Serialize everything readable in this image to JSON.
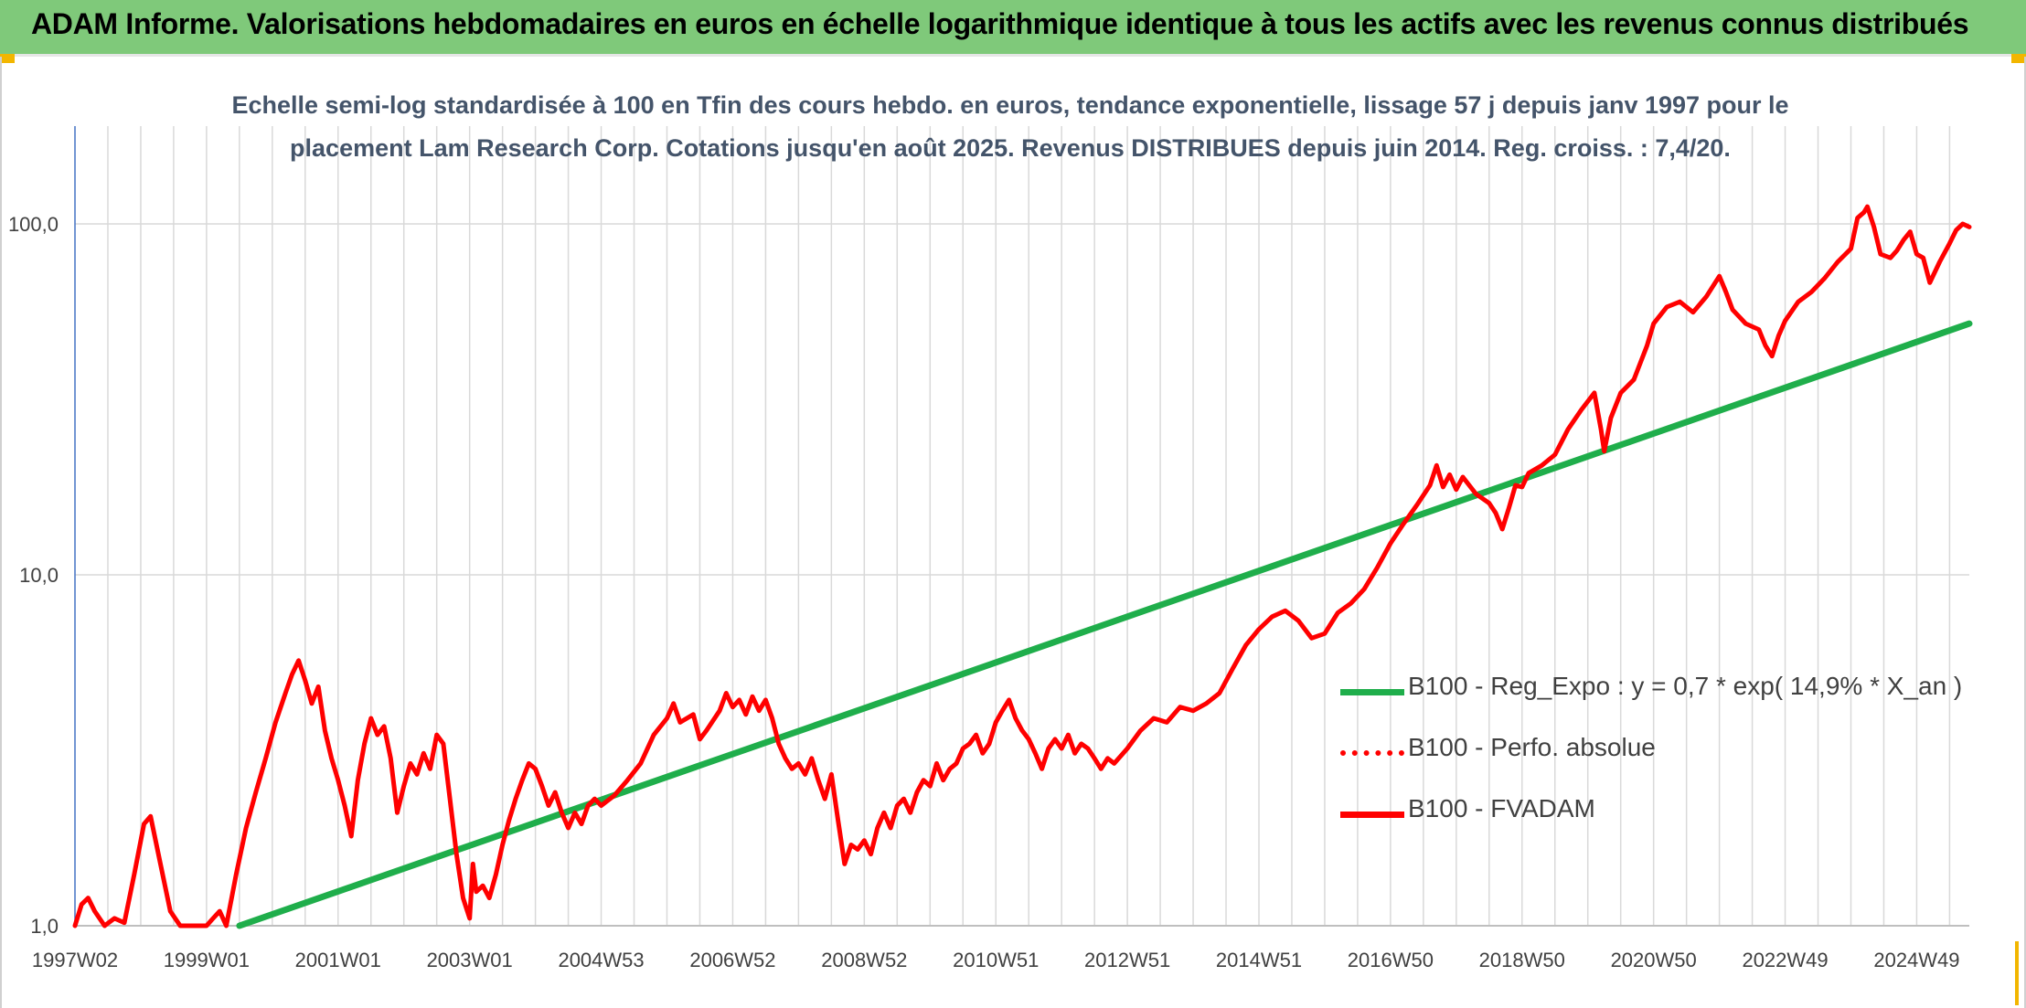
{
  "banner": {
    "title": "ADAM Informe. Valorisations hebdomadaires en euros en échelle logarithmique identique à tous les actifs avec les revenus connus distribués"
  },
  "chart_data": {
    "type": "line",
    "title_line1": "Echelle semi-log standardisée à 100 en Tfin des cours hebdo. en euros, tendance exponentielle, lissage 57 j depuis janv 1997 pour le",
    "title_line2": "placement Lam Research Corp. Cotations jusqu'en août 2025. Revenus DISTRIBUES depuis juin 2014. Reg. croiss. : 7,4/20.",
    "y_scale": "log",
    "ylim": [
      1.0,
      190.0
    ],
    "xlim": [
      1997.0,
      2025.8
    ],
    "y_ticks": [
      {
        "value": 1.0,
        "label": "1,0"
      },
      {
        "value": 10.0,
        "label": "10,0"
      },
      {
        "value": 100.0,
        "label": "100,0"
      }
    ],
    "x_ticks": [
      {
        "value": 1997.0,
        "label": "1997W02"
      },
      {
        "value": 1999.0,
        "label": "1999W01"
      },
      {
        "value": 2001.0,
        "label": "2001W01"
      },
      {
        "value": 2003.0,
        "label": "2003W01"
      },
      {
        "value": 2005.0,
        "label": "2004W53"
      },
      {
        "value": 2007.0,
        "label": "2006W52"
      },
      {
        "value": 2009.0,
        "label": "2008W52"
      },
      {
        "value": 2011.0,
        "label": "2010W51"
      },
      {
        "value": 2013.0,
        "label": "2012W51"
      },
      {
        "value": 2015.0,
        "label": "2014W51"
      },
      {
        "value": 2017.0,
        "label": "2016W50"
      },
      {
        "value": 2019.0,
        "label": "2018W50"
      },
      {
        "value": 2021.0,
        "label": "2020W50"
      },
      {
        "value": 2023.0,
        "label": "2022W49"
      },
      {
        "value": 2025.0,
        "label": "2024W49"
      }
    ],
    "grid": "vertical and horizontal",
    "legend_position": "right-center",
    "series": [
      {
        "name": "B100 - Reg_Expo : y = 0,7 * exp( 14,9% *  X_an )",
        "color": "#1fae4b",
        "style": "solid",
        "points": [
          [
            1999.5,
            1.0
          ],
          [
            2025.8,
            52.0
          ]
        ]
      },
      {
        "name": "B100 - Perfo. absolue",
        "color": "#ff0000",
        "style": "dotted",
        "points": []
      },
      {
        "name": "B100 - FVADAM",
        "color": "#ff0000",
        "style": "solid",
        "points": [
          [
            1997.0,
            1.0
          ],
          [
            1997.1,
            1.15
          ],
          [
            1997.2,
            1.2
          ],
          [
            1997.3,
            1.1
          ],
          [
            1997.45,
            1.0
          ],
          [
            1997.6,
            1.05
          ],
          [
            1997.75,
            1.02
          ],
          [
            1997.9,
            1.4
          ],
          [
            1998.05,
            1.95
          ],
          [
            1998.15,
            2.05
          ],
          [
            1998.3,
            1.5
          ],
          [
            1998.45,
            1.1
          ],
          [
            1998.6,
            1.0
          ],
          [
            1999.0,
            1.0
          ],
          [
            1999.1,
            1.05
          ],
          [
            1999.2,
            1.1
          ],
          [
            1999.3,
            1.0
          ],
          [
            1999.45,
            1.4
          ],
          [
            1999.6,
            1.9
          ],
          [
            1999.75,
            2.4
          ],
          [
            1999.9,
            3.0
          ],
          [
            2000.05,
            3.8
          ],
          [
            2000.2,
            4.6
          ],
          [
            2000.3,
            5.2
          ],
          [
            2000.4,
            5.7
          ],
          [
            2000.5,
            5.0
          ],
          [
            2000.6,
            4.3
          ],
          [
            2000.7,
            4.8
          ],
          [
            2000.8,
            3.6
          ],
          [
            2000.9,
            3.0
          ],
          [
            2001.0,
            2.6
          ],
          [
            2001.1,
            2.2
          ],
          [
            2001.2,
            1.8
          ],
          [
            2001.3,
            2.6
          ],
          [
            2001.4,
            3.3
          ],
          [
            2001.5,
            3.9
          ],
          [
            2001.6,
            3.5
          ],
          [
            2001.7,
            3.7
          ],
          [
            2001.8,
            3.0
          ],
          [
            2001.9,
            2.1
          ],
          [
            2002.0,
            2.5
          ],
          [
            2002.1,
            2.9
          ],
          [
            2002.2,
            2.7
          ],
          [
            2002.3,
            3.1
          ],
          [
            2002.4,
            2.8
          ],
          [
            2002.5,
            3.5
          ],
          [
            2002.6,
            3.3
          ],
          [
            2002.7,
            2.3
          ],
          [
            2002.8,
            1.6
          ],
          [
            2002.9,
            1.2
          ],
          [
            2003.0,
            1.05
          ],
          [
            2003.05,
            1.5
          ],
          [
            2003.1,
            1.25
          ],
          [
            2003.2,
            1.3
          ],
          [
            2003.3,
            1.2
          ],
          [
            2003.4,
            1.4
          ],
          [
            2003.5,
            1.7
          ],
          [
            2003.6,
            2.0
          ],
          [
            2003.7,
            2.3
          ],
          [
            2003.8,
            2.6
          ],
          [
            2003.9,
            2.9
          ],
          [
            2004.0,
            2.8
          ],
          [
            2004.1,
            2.5
          ],
          [
            2004.2,
            2.2
          ],
          [
            2004.3,
            2.4
          ],
          [
            2004.4,
            2.1
          ],
          [
            2004.5,
            1.9
          ],
          [
            2004.6,
            2.1
          ],
          [
            2004.7,
            1.95
          ],
          [
            2004.8,
            2.2
          ],
          [
            2004.9,
            2.3
          ],
          [
            2005.0,
            2.2
          ],
          [
            2005.2,
            2.35
          ],
          [
            2005.4,
            2.6
          ],
          [
            2005.6,
            2.9
          ],
          [
            2005.8,
            3.5
          ],
          [
            2006.0,
            3.9
          ],
          [
            2006.1,
            4.3
          ],
          [
            2006.2,
            3.8
          ],
          [
            2006.4,
            4.0
          ],
          [
            2006.5,
            3.4
          ],
          [
            2006.6,
            3.6
          ],
          [
            2006.8,
            4.1
          ],
          [
            2006.9,
            4.6
          ],
          [
            2007.0,
            4.2
          ],
          [
            2007.1,
            4.4
          ],
          [
            2007.2,
            4.0
          ],
          [
            2007.3,
            4.5
          ],
          [
            2007.4,
            4.1
          ],
          [
            2007.5,
            4.4
          ],
          [
            2007.6,
            3.9
          ],
          [
            2007.7,
            3.3
          ],
          [
            2007.8,
            3.0
          ],
          [
            2007.9,
            2.8
          ],
          [
            2008.0,
            2.9
          ],
          [
            2008.1,
            2.7
          ],
          [
            2008.2,
            3.0
          ],
          [
            2008.3,
            2.6
          ],
          [
            2008.4,
            2.3
          ],
          [
            2008.5,
            2.7
          ],
          [
            2008.6,
            2.0
          ],
          [
            2008.7,
            1.5
          ],
          [
            2008.8,
            1.7
          ],
          [
            2008.9,
            1.65
          ],
          [
            2009.0,
            1.75
          ],
          [
            2009.1,
            1.6
          ],
          [
            2009.2,
            1.9
          ],
          [
            2009.3,
            2.1
          ],
          [
            2009.4,
            1.9
          ],
          [
            2009.5,
            2.2
          ],
          [
            2009.6,
            2.3
          ],
          [
            2009.7,
            2.1
          ],
          [
            2009.8,
            2.4
          ],
          [
            2009.9,
            2.6
          ],
          [
            2010.0,
            2.5
          ],
          [
            2010.1,
            2.9
          ],
          [
            2010.2,
            2.6
          ],
          [
            2010.3,
            2.8
          ],
          [
            2010.4,
            2.9
          ],
          [
            2010.5,
            3.2
          ],
          [
            2010.6,
            3.3
          ],
          [
            2010.7,
            3.5
          ],
          [
            2010.8,
            3.1
          ],
          [
            2010.9,
            3.3
          ],
          [
            2011.0,
            3.8
          ],
          [
            2011.1,
            4.1
          ],
          [
            2011.2,
            4.4
          ],
          [
            2011.3,
            3.9
          ],
          [
            2011.4,
            3.6
          ],
          [
            2011.5,
            3.4
          ],
          [
            2011.6,
            3.1
          ],
          [
            2011.7,
            2.8
          ],
          [
            2011.8,
            3.2
          ],
          [
            2011.9,
            3.4
          ],
          [
            2012.0,
            3.2
          ],
          [
            2012.1,
            3.5
          ],
          [
            2012.2,
            3.1
          ],
          [
            2012.3,
            3.3
          ],
          [
            2012.4,
            3.2
          ],
          [
            2012.5,
            3.0
          ],
          [
            2012.6,
            2.8
          ],
          [
            2012.7,
            3.0
          ],
          [
            2012.8,
            2.9
          ],
          [
            2013.0,
            3.2
          ],
          [
            2013.2,
            3.6
          ],
          [
            2013.4,
            3.9
          ],
          [
            2013.6,
            3.8
          ],
          [
            2013.8,
            4.2
          ],
          [
            2014.0,
            4.1
          ],
          [
            2014.2,
            4.3
          ],
          [
            2014.4,
            4.6
          ],
          [
            2014.6,
            5.4
          ],
          [
            2014.8,
            6.3
          ],
          [
            2015.0,
            7.0
          ],
          [
            2015.2,
            7.6
          ],
          [
            2015.4,
            7.9
          ],
          [
            2015.6,
            7.4
          ],
          [
            2015.8,
            6.6
          ],
          [
            2016.0,
            6.8
          ],
          [
            2016.2,
            7.8
          ],
          [
            2016.4,
            8.3
          ],
          [
            2016.6,
            9.1
          ],
          [
            2016.8,
            10.5
          ],
          [
            2017.0,
            12.3
          ],
          [
            2017.2,
            14.0
          ],
          [
            2017.4,
            15.8
          ],
          [
            2017.6,
            18.0
          ],
          [
            2017.7,
            20.5
          ],
          [
            2017.8,
            17.8
          ],
          [
            2017.9,
            19.3
          ],
          [
            2018.0,
            17.5
          ],
          [
            2018.1,
            19.0
          ],
          [
            2018.3,
            17.0
          ],
          [
            2018.5,
            16.0
          ],
          [
            2018.6,
            15.0
          ],
          [
            2018.7,
            13.5
          ],
          [
            2018.8,
            15.5
          ],
          [
            2018.9,
            18.0
          ],
          [
            2019.0,
            17.8
          ],
          [
            2019.1,
            19.5
          ],
          [
            2019.3,
            20.5
          ],
          [
            2019.5,
            22.0
          ],
          [
            2019.7,
            26.0
          ],
          [
            2019.9,
            29.5
          ],
          [
            2020.1,
            33.0
          ],
          [
            2020.2,
            26.0
          ],
          [
            2020.25,
            22.5
          ],
          [
            2020.35,
            28.0
          ],
          [
            2020.5,
            33.0
          ],
          [
            2020.7,
            36.0
          ],
          [
            2020.9,
            45.0
          ],
          [
            2021.0,
            52.0
          ],
          [
            2021.2,
            58.0
          ],
          [
            2021.4,
            60.0
          ],
          [
            2021.6,
            56.0
          ],
          [
            2021.8,
            62.0
          ],
          [
            2022.0,
            71.0
          ],
          [
            2022.1,
            64.0
          ],
          [
            2022.2,
            57.0
          ],
          [
            2022.4,
            52.0
          ],
          [
            2022.6,
            50.0
          ],
          [
            2022.7,
            45.0
          ],
          [
            2022.8,
            42.0
          ],
          [
            2022.9,
            48.0
          ],
          [
            2023.0,
            53.0
          ],
          [
            2023.2,
            60.0
          ],
          [
            2023.4,
            64.0
          ],
          [
            2023.6,
            70.0
          ],
          [
            2023.8,
            78.0
          ],
          [
            2024.0,
            85.0
          ],
          [
            2024.1,
            104.0
          ],
          [
            2024.2,
            108.0
          ],
          [
            2024.25,
            112.0
          ],
          [
            2024.35,
            98.0
          ],
          [
            2024.45,
            82.0
          ],
          [
            2024.6,
            80.0
          ],
          [
            2024.7,
            84.0
          ],
          [
            2024.8,
            90.0
          ],
          [
            2024.9,
            95.0
          ],
          [
            2025.0,
            82.0
          ],
          [
            2025.1,
            80.0
          ],
          [
            2025.2,
            68.0
          ],
          [
            2025.35,
            78.0
          ],
          [
            2025.5,
            88.0
          ],
          [
            2025.6,
            96.0
          ],
          [
            2025.7,
            100.0
          ],
          [
            2025.8,
            98.0
          ]
        ]
      }
    ]
  }
}
